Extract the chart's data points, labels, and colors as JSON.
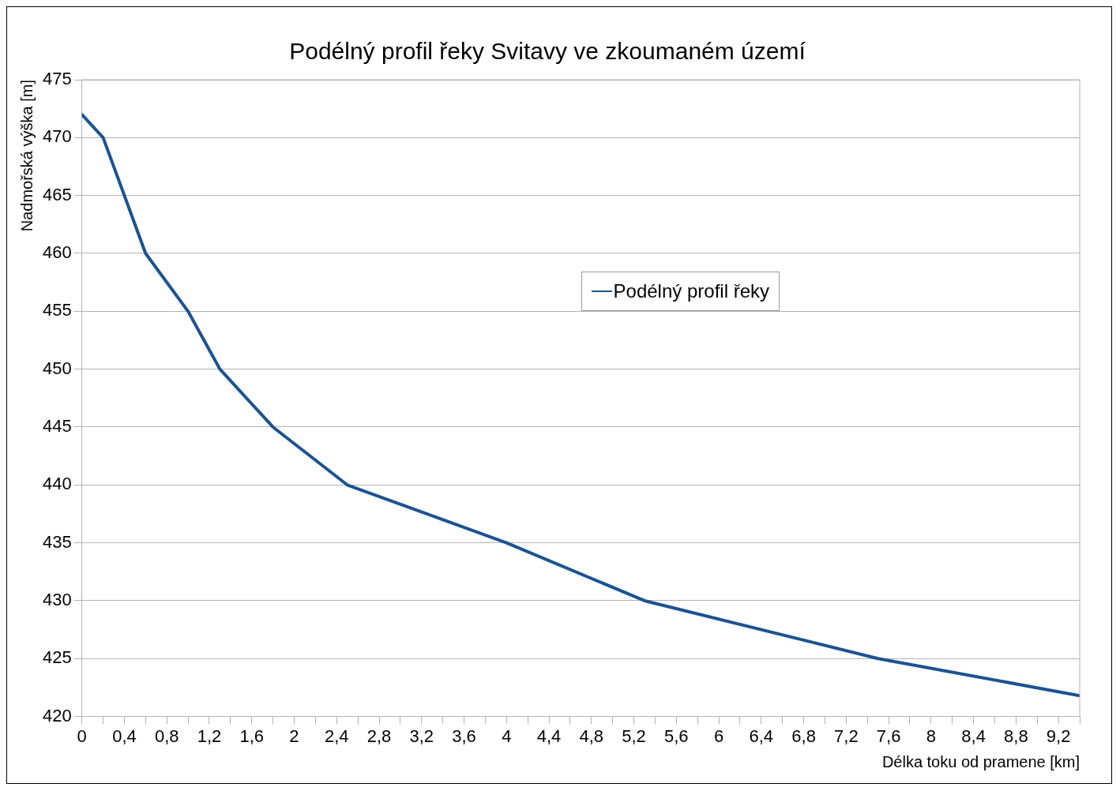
{
  "chart_data": {
    "type": "line",
    "title": "Podélný profil řeky Svitavy ve zkoumaném území",
    "xlabel": "Délka toku od pramene [km]",
    "ylabel": "Nadmořská výška [m]",
    "x": [
      0,
      0.2,
      0.6,
      1.0,
      1.3,
      1.8,
      2.5,
      4.0,
      5.3,
      7.5,
      9.4
    ],
    "series": [
      {
        "name": "Podélný profil řeky",
        "color": "#1c5290",
        "values": [
          472,
          470,
          460,
          455,
          450,
          445,
          440,
          435,
          430,
          425,
          421.8
        ]
      }
    ],
    "xlim": [
      0,
      9.4
    ],
    "xticks": [
      0,
      {
        "value": 0.2,
        "label": null
      },
      {
        "value": 0.4,
        "label": "0,4"
      },
      {
        "value": 0.6,
        "label": null
      },
      {
        "value": 0.8,
        "label": "0,8"
      },
      {
        "value": 1.0,
        "label": null
      },
      {
        "value": 1.2,
        "label": "1,2"
      },
      {
        "value": 1.4,
        "label": null
      },
      {
        "value": 1.6,
        "label": "1,6"
      },
      {
        "value": 1.8,
        "label": null
      },
      2,
      {
        "value": 2.2,
        "label": null
      },
      {
        "value": 2.4,
        "label": "2,4"
      },
      {
        "value": 2.6,
        "label": null
      },
      {
        "value": 2.8,
        "label": "2,8"
      },
      {
        "value": 3.0,
        "label": null
      },
      {
        "value": 3.2,
        "label": "3,2"
      },
      {
        "value": 3.4,
        "label": null
      },
      {
        "value": 3.6,
        "label": "3,6"
      },
      {
        "value": 3.8,
        "label": null
      },
      4,
      {
        "value": 4.2,
        "label": null
      },
      {
        "value": 4.4,
        "label": "4,4"
      },
      {
        "value": 4.6,
        "label": null
      },
      {
        "value": 4.8,
        "label": "4,8"
      },
      {
        "value": 5.0,
        "label": null
      },
      {
        "value": 5.2,
        "label": "5,2"
      },
      {
        "value": 5.4,
        "label": null
      },
      {
        "value": 5.6,
        "label": "5,6"
      },
      {
        "value": 5.8,
        "label": null
      },
      6,
      {
        "value": 6.2,
        "label": null
      },
      {
        "value": 6.4,
        "label": "6,4"
      },
      {
        "value": 6.6,
        "label": null
      },
      {
        "value": 6.8,
        "label": "6,8"
      },
      {
        "value": 7.0,
        "label": null
      },
      {
        "value": 7.2,
        "label": "7,2"
      },
      {
        "value": 7.4,
        "label": null
      },
      {
        "value": 7.6,
        "label": "7,6"
      },
      {
        "value": 7.8,
        "label": null
      },
      8,
      {
        "value": 8.2,
        "label": null
      },
      {
        "value": 8.4,
        "label": "8,4"
      },
      {
        "value": 8.6,
        "label": null
      },
      {
        "value": 8.8,
        "label": "8,8"
      },
      {
        "value": 9.0,
        "label": null
      },
      {
        "value": 9.2,
        "label": "9,2"
      },
      {
        "value": 9.4,
        "label": null
      }
    ],
    "ylim": [
      420,
      475
    ],
    "yticks": [
      420,
      425,
      430,
      435,
      440,
      445,
      450,
      455,
      460,
      465,
      470,
      475
    ],
    "grid": "y",
    "legend": "top",
    "marker": "none",
    "line_style": "solid"
  }
}
